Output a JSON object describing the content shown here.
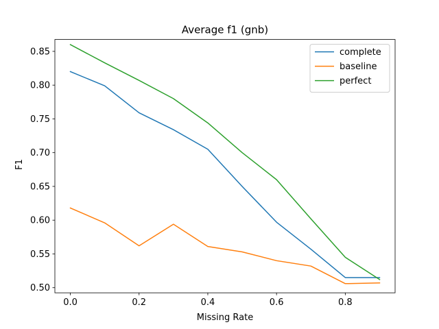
{
  "chart_data": {
    "type": "line",
    "title": "Average f1 (gnb)",
    "xlabel": "Missing Rate",
    "ylabel": "F1",
    "x": [
      0.0,
      0.1,
      0.2,
      0.3,
      0.4,
      0.5,
      0.6,
      0.7,
      0.8,
      0.9
    ],
    "series": [
      {
        "name": "complete",
        "color": "#1f77b4",
        "values": [
          0.82,
          0.799,
          0.759,
          0.734,
          0.705,
          0.65,
          0.597,
          0.557,
          0.515,
          0.515
        ]
      },
      {
        "name": "baseline",
        "color": "#ff7f0e",
        "values": [
          0.618,
          0.596,
          0.562,
          0.594,
          0.561,
          0.553,
          0.54,
          0.532,
          0.506,
          0.507
        ]
      },
      {
        "name": "perfect",
        "color": "#2ca02c",
        "values": [
          0.86,
          0.833,
          0.807,
          0.78,
          0.744,
          0.7,
          0.66,
          0.602,
          0.545,
          0.512
        ]
      }
    ],
    "xlim": [
      -0.045,
      0.945
    ],
    "ylim": [
      0.4924,
      0.8676
    ],
    "xticks": [
      0.0,
      0.2,
      0.4,
      0.6,
      0.8
    ],
    "xtick_labels": [
      "0.0",
      "0.2",
      "0.4",
      "0.6",
      "0.8"
    ],
    "yticks": [
      0.5,
      0.55,
      0.6,
      0.65,
      0.7,
      0.75,
      0.8,
      0.85
    ],
    "ytick_labels": [
      "0.50",
      "0.55",
      "0.60",
      "0.65",
      "0.70",
      "0.75",
      "0.80",
      "0.85"
    ],
    "grid": false,
    "legend_position": "top-right"
  }
}
